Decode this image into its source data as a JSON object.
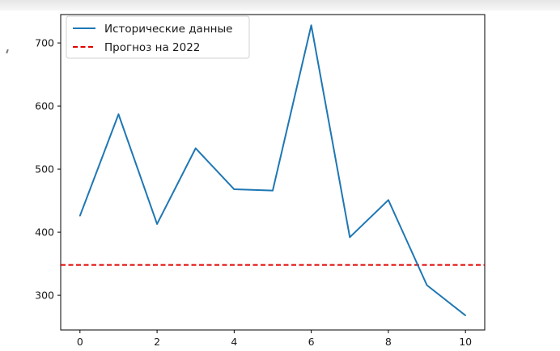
{
  "chart_data": {
    "type": "line",
    "title": "",
    "xlabel": "",
    "ylabel": "",
    "x": [
      0,
      1,
      2,
      3,
      4,
      5,
      6,
      7,
      8,
      9,
      10
    ],
    "series": [
      {
        "name": "Исторические данные",
        "values": [
          426,
          587,
          413,
          533,
          468,
          466,
          728,
          392,
          451,
          316,
          268
        ],
        "color": "#1f77b4",
        "style": "solid"
      },
      {
        "name": "Прогноз на 2022",
        "hline": 348,
        "color": "#e00000",
        "style": "dashed"
      }
    ],
    "xlim": [
      -0.5,
      10.5
    ],
    "ylim": [
      245,
      745
    ],
    "xticks": [
      "0",
      "2",
      "4",
      "6",
      "8",
      "10"
    ],
    "yticks": [
      "300",
      "400",
      "500",
      "600",
      "700"
    ],
    "grid": false,
    "legend_position": "upper-left"
  }
}
